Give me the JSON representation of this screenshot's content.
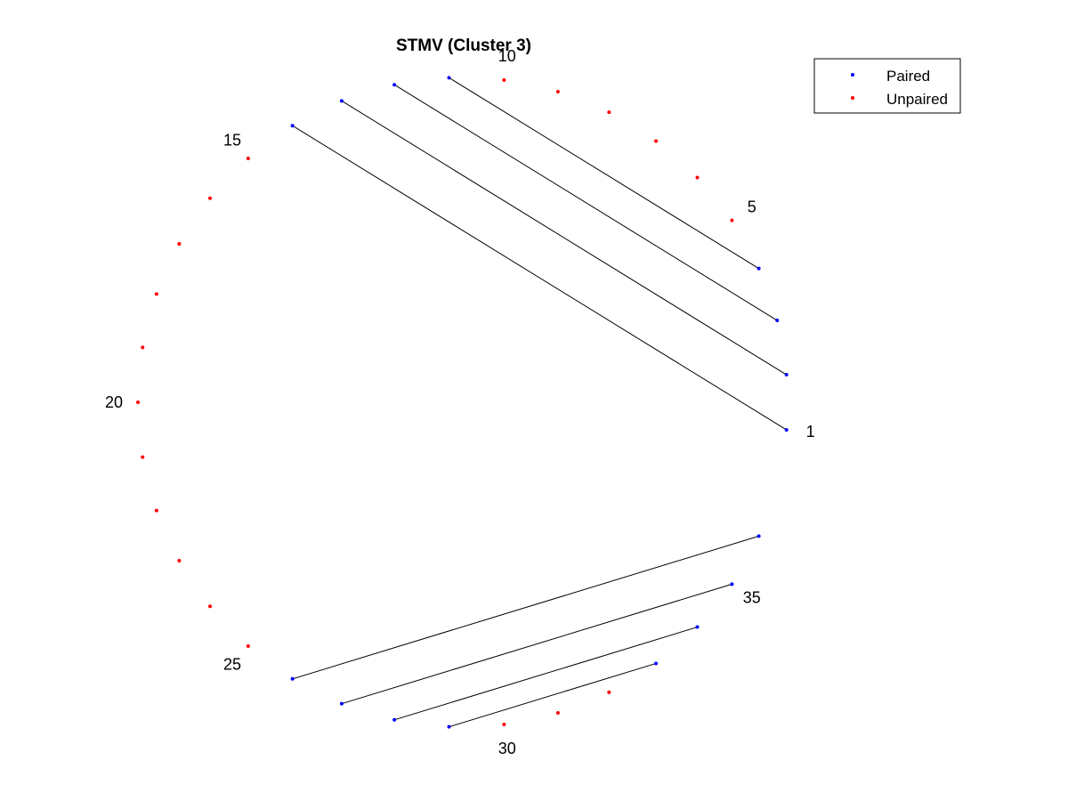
{
  "chart_data": {
    "type": "arc-diagram",
    "title": "STMV (Cluster 3)",
    "n_positions": 36,
    "position_labels": [
      "1",
      "5",
      "10",
      "15",
      "20",
      "25",
      "30",
      "35"
    ],
    "pairs": [
      [
        1,
        14
      ],
      [
        2,
        13
      ],
      [
        3,
        12
      ],
      [
        4,
        11
      ],
      [
        26,
        36
      ],
      [
        27,
        35
      ],
      [
        28,
        34
      ],
      [
        29,
        33
      ]
    ],
    "paired_positions": [
      1,
      2,
      3,
      4,
      11,
      12,
      13,
      14,
      26,
      27,
      28,
      29,
      33,
      34,
      35,
      36
    ],
    "unpaired_positions": [
      5,
      6,
      7,
      8,
      9,
      10,
      15,
      16,
      17,
      18,
      19,
      20,
      21,
      22,
      23,
      24,
      25,
      30,
      31,
      32
    ],
    "series": [
      {
        "name": "Paired",
        "color": "#0000ff"
      },
      {
        "name": "Unpaired",
        "color": "#ff0000"
      }
    ],
    "pair_line_color": "#000000",
    "legend_position": "top-right"
  }
}
